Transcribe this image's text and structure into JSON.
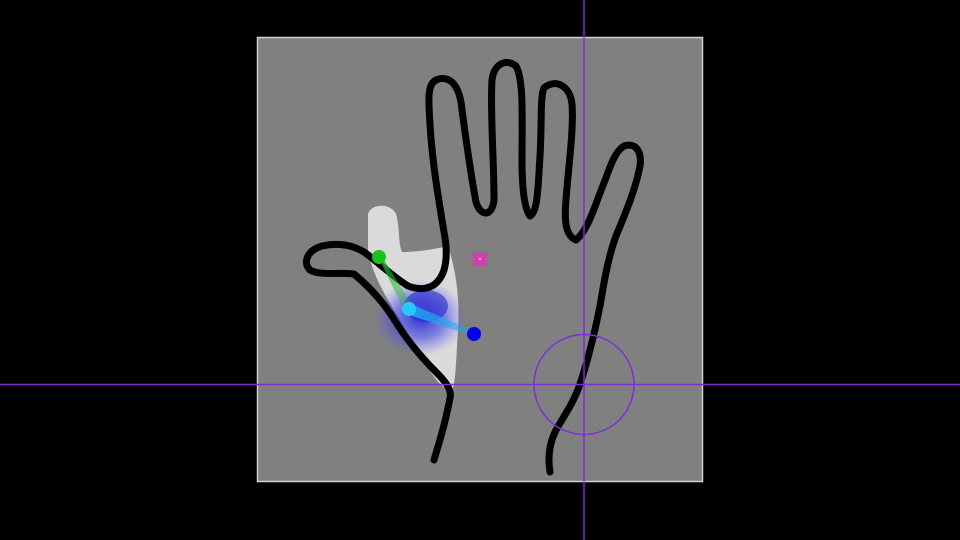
{
  "app": {
    "title": ""
  },
  "canvas": {
    "background_color": "#000000",
    "paper_color": "#808080",
    "paper_border_color": "#d0d0d0",
    "stroke_color": "#000000"
  },
  "crosshair": {
    "color": "#7b2fd6",
    "icon": "crosshair-icon"
  },
  "deform_region": {
    "highlight_color": "#e3e3e3",
    "weight_color": "#2a2ad0"
  },
  "bones": [
    {
      "name": "thumb-tip-bone",
      "color": "#21b62a"
    },
    {
      "name": "thumb-base-bone",
      "color": "#1ea7f0"
    }
  ],
  "joints": [
    {
      "name": "thumb-tip-joint",
      "color": "#19c31e",
      "selected": false
    },
    {
      "name": "thumb-mid-joint",
      "color": "#27c8ff",
      "selected": true
    },
    {
      "name": "thumb-root-joint",
      "color": "#0000ee",
      "selected": false
    }
  ],
  "anchor": {
    "color": "#d63caa",
    "icon": "pin-marker-icon"
  }
}
